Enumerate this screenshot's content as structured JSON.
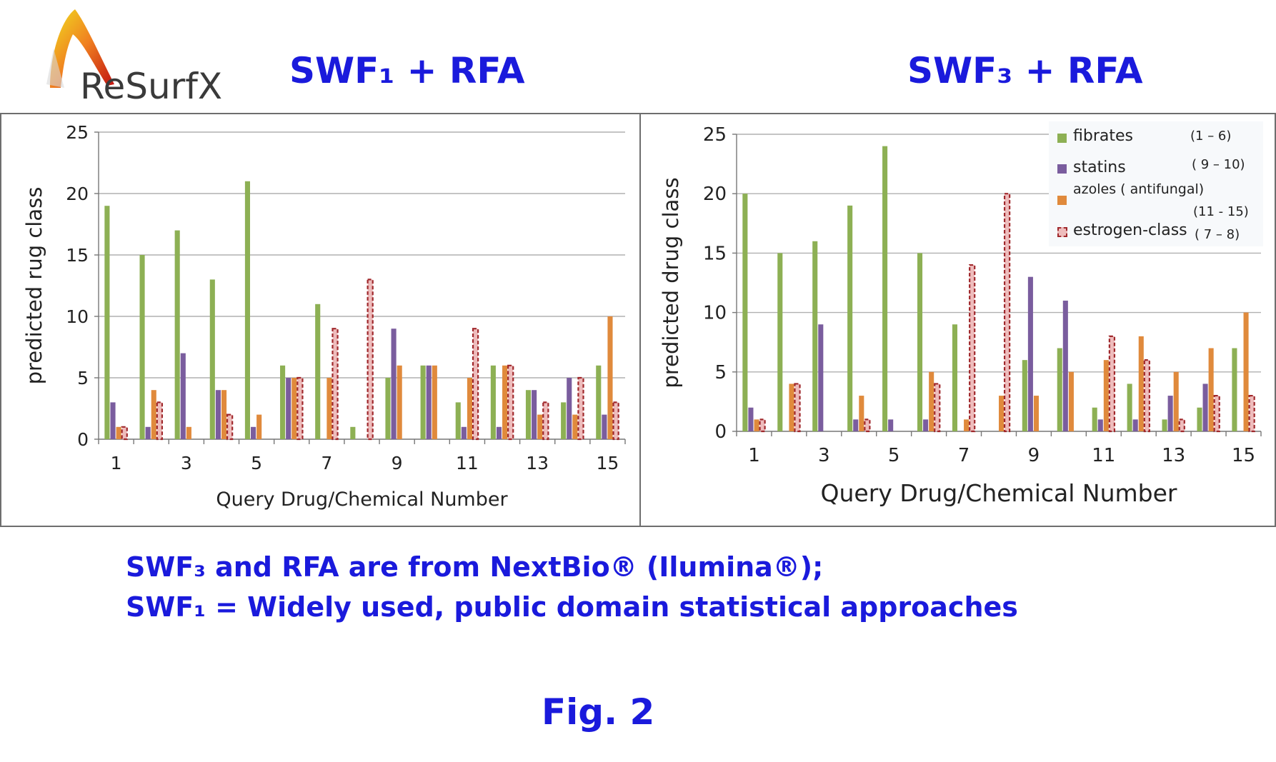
{
  "logo": {
    "text": "ReSurfX"
  },
  "titles": {
    "left": "SWF₁ + RFA",
    "right": "SWF₃ + RFA"
  },
  "captions": {
    "line1": "SWF₃ and RFA are from NextBio® (Ilumina®);",
    "line2": "SWF₁  = Widely used, public domain statistical approaches"
  },
  "figure_label": "Fig. 2",
  "colors": {
    "fibrates": "#8db054",
    "statins": "#7a5d9e",
    "azoles": "#e08a3c",
    "estrogen_fill": "#eebcbc",
    "estrogen_border": "#a0282c",
    "title": "#1a1adc"
  },
  "legend": {
    "items": [
      {
        "label": "fibrates",
        "range": "(1 – 6)"
      },
      {
        "label": "statins",
        "range": "( 9 – 10)"
      },
      {
        "label": "azoles ( antifungal)",
        "range": "(11 - 15)"
      },
      {
        "label": "estrogen-class",
        "range": "( 7 – 8)"
      }
    ]
  },
  "chart_data": [
    {
      "type": "bar",
      "title": "SWF₁ + RFA",
      "xlabel": "Query Drug/Chemical Number",
      "ylabel": "predicted rug class",
      "categories": [
        1,
        2,
        3,
        4,
        5,
        6,
        7,
        8,
        9,
        10,
        11,
        12,
        13,
        14,
        15
      ],
      "x_tick_labels": [
        "1",
        "3",
        "5",
        "7",
        "9",
        "11",
        "13",
        "15"
      ],
      "ylim": [
        0,
        25
      ],
      "y_ticks": [
        0,
        5,
        10,
        15,
        20,
        25
      ],
      "grid": true,
      "series": [
        {
          "name": "fibrates",
          "values": [
            19,
            15,
            17,
            13,
            21,
            6,
            11,
            1,
            5,
            6,
            3,
            6,
            4,
            3,
            6
          ]
        },
        {
          "name": "statins",
          "values": [
            3,
            1,
            7,
            4,
            1,
            5,
            0,
            0,
            9,
            6,
            1,
            1,
            4,
            5,
            2
          ]
        },
        {
          "name": "azoles ( antifungal)",
          "values": [
            1,
            4,
            1,
            4,
            2,
            5,
            5,
            0,
            6,
            6,
            5,
            6,
            2,
            2,
            10
          ]
        },
        {
          "name": "estrogen-class",
          "values": [
            1,
            3,
            0,
            2,
            0,
            5,
            9,
            13,
            0,
            0,
            9,
            6,
            3,
            5,
            3
          ]
        }
      ]
    },
    {
      "type": "bar",
      "title": "SWF₃ + RFA",
      "xlabel": "Query Drug/Chemical Number",
      "ylabel": "predicted drug class",
      "categories": [
        1,
        2,
        3,
        4,
        5,
        6,
        7,
        8,
        9,
        10,
        11,
        12,
        13,
        14,
        15
      ],
      "x_tick_labels": [
        "1",
        "3",
        "5",
        "7",
        "9",
        "11",
        "13",
        "15"
      ],
      "ylim": [
        0,
        25
      ],
      "y_ticks": [
        0,
        5,
        10,
        15,
        20,
        25
      ],
      "grid": true,
      "legend_position": "top-right",
      "series": [
        {
          "name": "fibrates",
          "values": [
            20,
            15,
            16,
            19,
            24,
            15,
            9,
            0,
            6,
            7,
            2,
            4,
            1,
            2,
            7
          ]
        },
        {
          "name": "statins",
          "values": [
            2,
            0,
            9,
            1,
            1,
            1,
            0,
            0,
            13,
            11,
            1,
            1,
            3,
            4,
            0
          ]
        },
        {
          "name": "azoles ( antifungal)",
          "values": [
            1,
            4,
            0,
            3,
            0,
            5,
            1,
            3,
            3,
            5,
            6,
            8,
            5,
            7,
            10
          ]
        },
        {
          "name": "estrogen-class",
          "values": [
            1,
            4,
            0,
            1,
            0,
            4,
            14,
            20,
            0,
            0,
            8,
            6,
            1,
            3,
            3
          ]
        }
      ]
    }
  ]
}
